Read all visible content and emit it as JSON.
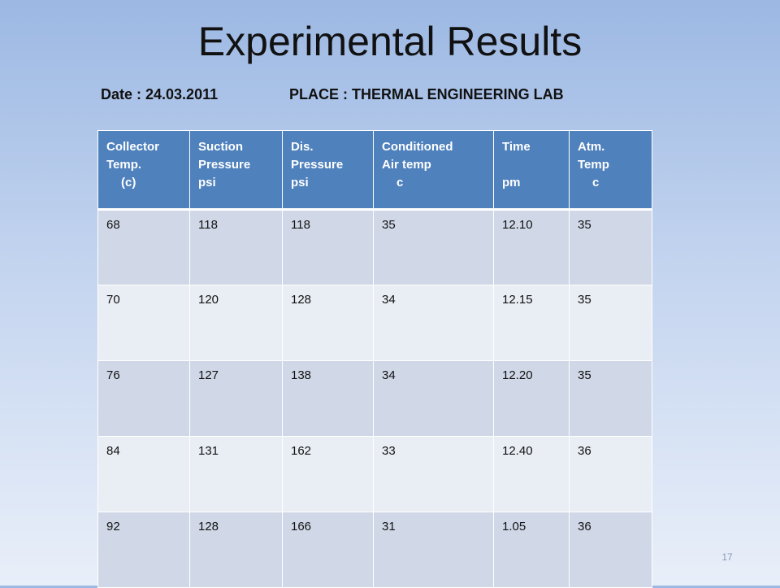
{
  "title": "Experimental Results",
  "date": "Date : 24.03.2011",
  "place": "PLACE : THERMAL ENGINEERING LAB",
  "table": {
    "headers": [
      [
        "Collector",
        "Temp.",
        "(c)"
      ],
      [
        "Suction",
        "Pressure",
        "psi"
      ],
      [
        "Dis.",
        "Pressure",
        "psi"
      ],
      [
        "Conditioned",
        "Air temp",
        "c"
      ],
      [
        "Time",
        "pm"
      ],
      [
        "Atm.",
        "Temp",
        "c"
      ]
    ],
    "rows": [
      [
        "68",
        "118",
        "118",
        "35",
        "12.10",
        "35"
      ],
      [
        "70",
        "120",
        "128",
        "34",
        "12.15",
        "35"
      ],
      [
        "76",
        "127",
        "138",
        "34",
        "12.20",
        "35"
      ],
      [
        "84",
        "131",
        "162",
        "33",
        "12.40",
        "36"
      ],
      [
        "92",
        "128",
        "166",
        "31",
        "1.05",
        "36"
      ]
    ]
  },
  "page_number": "17"
}
